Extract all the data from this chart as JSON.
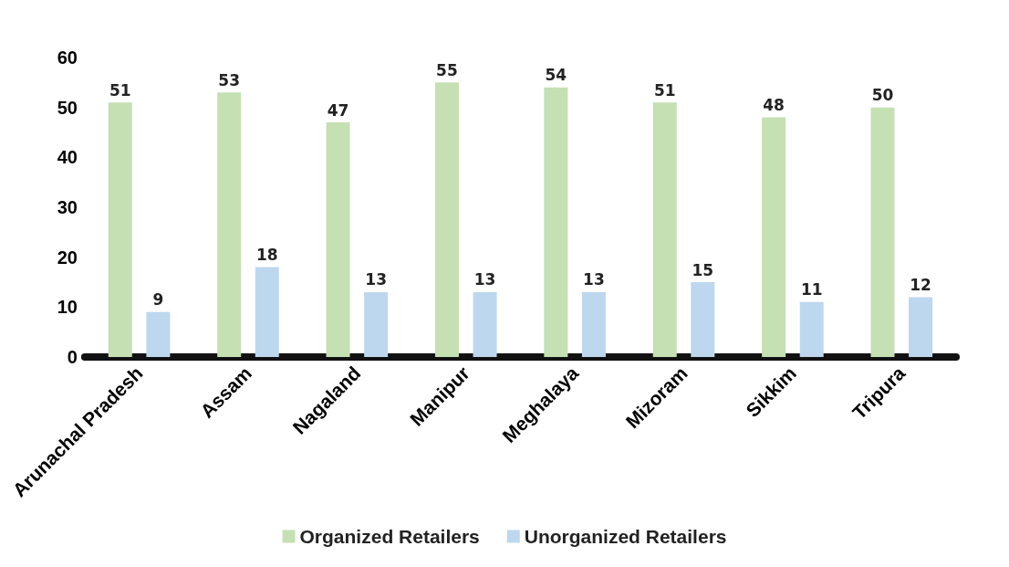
{
  "chart_data": {
    "type": "bar",
    "categories": [
      "Arunachal Pradesh",
      "Assam",
      "Nagaland",
      "Manipur",
      "Meghalaya",
      "Mizoram",
      "Sikkim",
      "Tripura"
    ],
    "series": [
      {
        "name": "Organized Retailers",
        "color": "#c5e0b3",
        "values": [
          51,
          53,
          47,
          55,
          54,
          51,
          48,
          50
        ]
      },
      {
        "name": "Unorganized Retailers",
        "color": "#bdd7ee",
        "values": [
          9,
          18,
          13,
          13,
          13,
          15,
          11,
          12
        ]
      }
    ],
    "ylim": [
      0,
      60
    ],
    "yticks": [
      0,
      10,
      20,
      30,
      40,
      50,
      60
    ],
    "grid": false,
    "legend": "bottom",
    "data_labels": true
  }
}
